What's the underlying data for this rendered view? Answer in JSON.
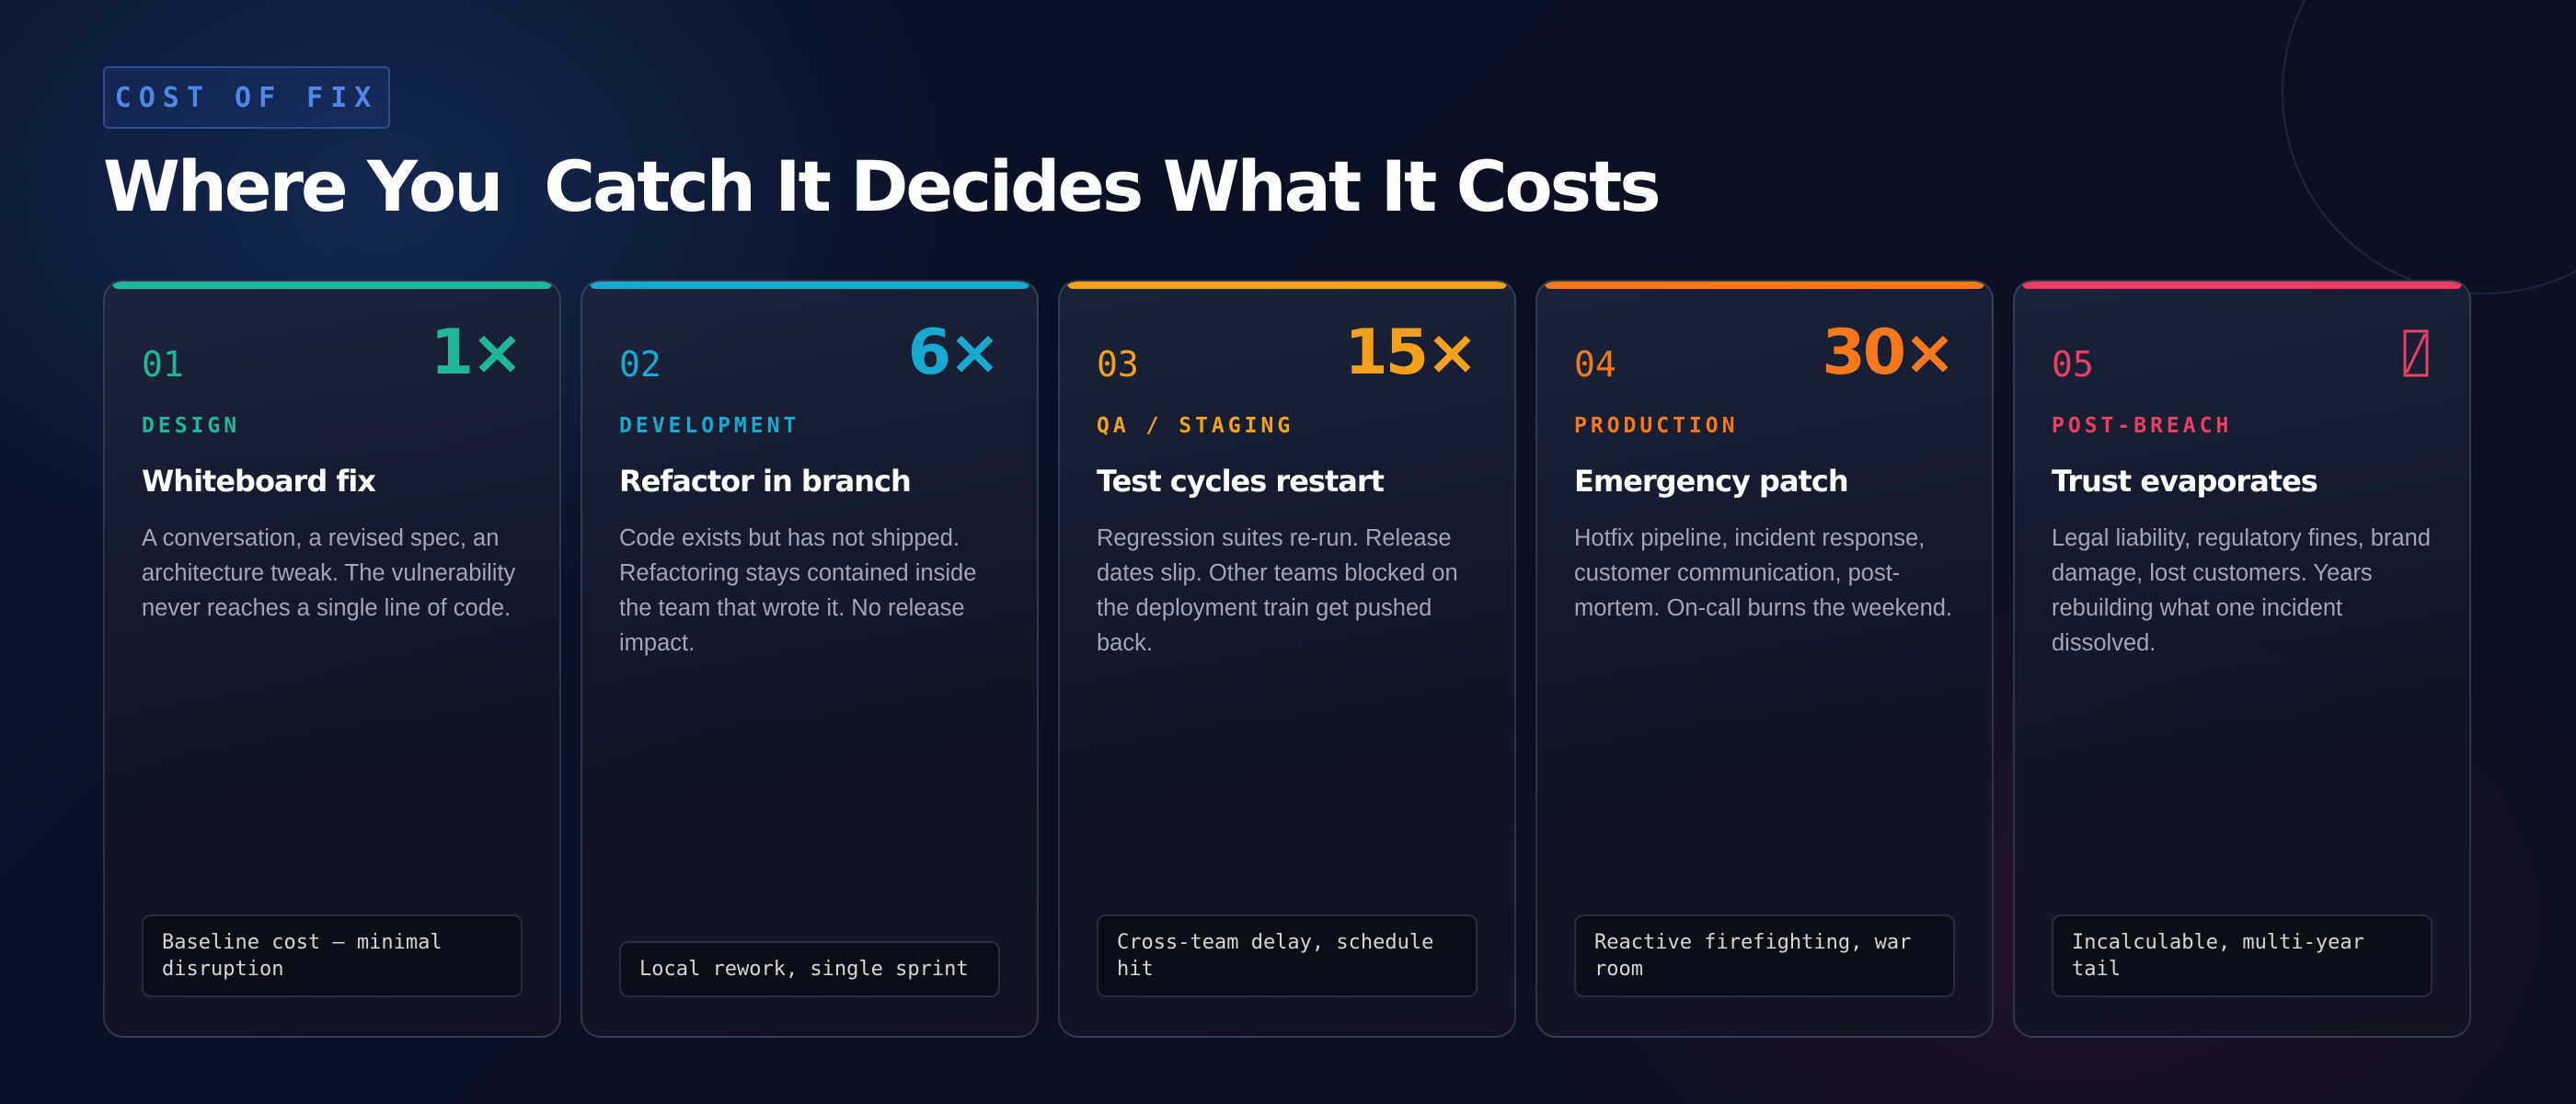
{
  "header": {
    "tag": "COST OF FIX",
    "title": "Where You  Catch It Decides What It Costs"
  },
  "cards": [
    {
      "number": "01",
      "multiplier": "1×",
      "stage": "DESIGN",
      "heading": "Whiteboard fix",
      "body": "A conversation, a revised spec, an architecture tweak. The vulnerability never reaches a single line of code.",
      "footer": "Baseline cost — minimal disruption",
      "accent": "#1fb79a"
    },
    {
      "number": "02",
      "multiplier": "6×",
      "stage": "DEVELOPMENT",
      "heading": "Refactor in branch",
      "body": "Code exists but has not shipped. Refactoring stays contained inside the team that wrote it. No release impact.",
      "footer": "Local rework, single sprint",
      "accent": "#17a9cf"
    },
    {
      "number": "03",
      "multiplier": "15×",
      "stage": "QA / STAGING",
      "heading": "Test cycles restart",
      "body": "Regression suites re-run. Release dates slip. Other teams blocked on the deployment train get pushed back.",
      "footer": "Cross-team delay, schedule hit",
      "accent": "#f3a01a"
    },
    {
      "number": "04",
      "multiplier": "30×",
      "stage": "PRODUCTION",
      "heading": "Emergency patch",
      "body": "Hotfix pipeline, incident response, customer communication, post-mortem. On-call burns the weekend.",
      "footer": "Reactive firefighting, war room",
      "accent": "#f5791c"
    },
    {
      "number": "05",
      "multiplier": "",
      "stage": "POST-BREACH",
      "heading": "Trust evaporates",
      "body": "Legal liability, regulatory fines, brand damage, lost customers. Years  rebuilding what one incident dissolved.",
      "footer": "Incalculable, multi-year tail",
      "accent": "#ea3f64",
      "icon": "missing-glyph-box-icon"
    }
  ]
}
